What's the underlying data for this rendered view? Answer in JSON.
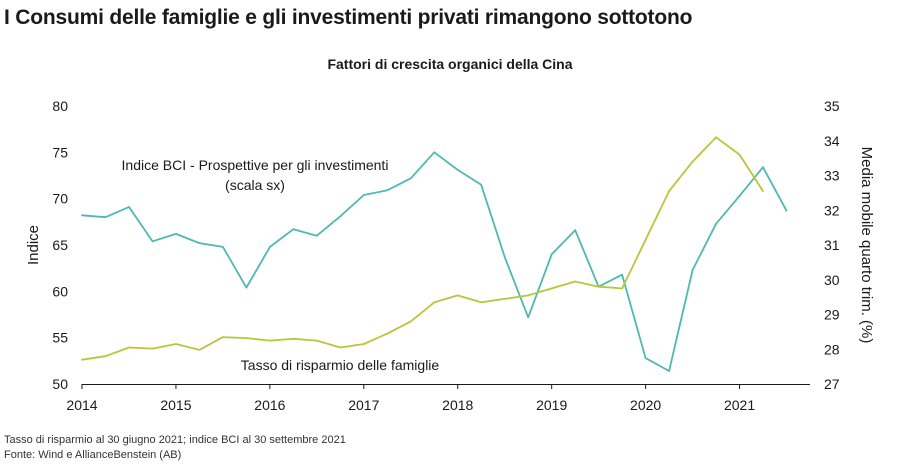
{
  "headline": "I Consumi delle famiglie e gli investimenti privati rimangono sottotono",
  "footnotes": {
    "line1": "Tasso di risparmio al 30 giugno 2021; indice BCI al 30 settembre 2021",
    "line2": "Fonte: Wind e AllianceBenstein (AB)"
  },
  "chart_data": {
    "type": "line",
    "title": "Fattori di crescita organici della Cina",
    "ylabel": "Indice",
    "y2label": "Media mobile quarto trim. (%)",
    "ylim": [
      50,
      80
    ],
    "y2lim": [
      27,
      35
    ],
    "yticks": [
      "50",
      "55",
      "60",
      "65",
      "70",
      "75",
      "80"
    ],
    "y2ticks": [
      "27",
      "28",
      "29",
      "30",
      "31",
      "32",
      "33",
      "34",
      "35"
    ],
    "xlim": [
      2014,
      2021.75
    ],
    "xticks": [
      "2014",
      "2015",
      "2016",
      "2017",
      "2018",
      "2019",
      "2020",
      "2021"
    ],
    "colors": {
      "bci": "#4fb8b3",
      "savings": "#b7c73c",
      "axis": "#1a1a1a"
    },
    "series": [
      {
        "name": "Indice BCI - Prospettive per gli investimenti",
        "label_line1": "Indice BCI - Prospettive per gli investimenti",
        "label_line2": "(scala sx)",
        "axis": "left",
        "x": [
          2014.0,
          2014.25,
          2014.5,
          2014.75,
          2015.0,
          2015.25,
          2015.5,
          2015.75,
          2016.0,
          2016.25,
          2016.5,
          2016.75,
          2017.0,
          2017.25,
          2017.5,
          2017.75,
          2018.0,
          2018.25,
          2018.5,
          2018.75,
          2019.0,
          2019.25,
          2019.5,
          2019.75,
          2020.0,
          2020.25,
          2020.5,
          2020.75,
          2021.0,
          2021.25,
          2021.5
        ],
        "values": [
          68.2,
          68.0,
          69.1,
          65.4,
          66.2,
          65.2,
          64.8,
          60.4,
          64.8,
          66.7,
          66.0,
          68.1,
          70.4,
          70.9,
          72.2,
          75.0,
          73.1,
          71.5,
          63.7,
          57.2,
          64.0,
          66.6,
          60.5,
          61.8,
          52.8,
          51.4,
          62.3,
          67.3,
          70.3,
          73.4,
          68.7
        ]
      },
      {
        "name": "Tasso di risparmio delle famiglie",
        "label_line1": "Tasso di risparmio delle famiglie",
        "axis": "right",
        "x": [
          2014.0,
          2014.25,
          2014.5,
          2014.75,
          2015.0,
          2015.25,
          2015.5,
          2015.75,
          2016.0,
          2016.25,
          2016.5,
          2016.75,
          2017.0,
          2017.25,
          2017.5,
          2017.75,
          2018.0,
          2018.25,
          2018.5,
          2018.75,
          2019.0,
          2019.25,
          2019.5,
          2019.75,
          2020.0,
          2020.25,
          2020.5,
          2020.75,
          2021.0,
          2021.25
        ],
        "values": [
          27.7,
          27.8,
          28.05,
          28.02,
          28.15,
          27.98,
          28.35,
          28.32,
          28.25,
          28.3,
          28.25,
          28.05,
          28.15,
          28.45,
          28.8,
          29.35,
          29.55,
          29.35,
          29.45,
          29.55,
          29.75,
          29.95,
          29.8,
          29.75,
          31.15,
          32.55,
          33.4,
          34.1,
          33.6,
          32.55
        ]
      }
    ]
  }
}
